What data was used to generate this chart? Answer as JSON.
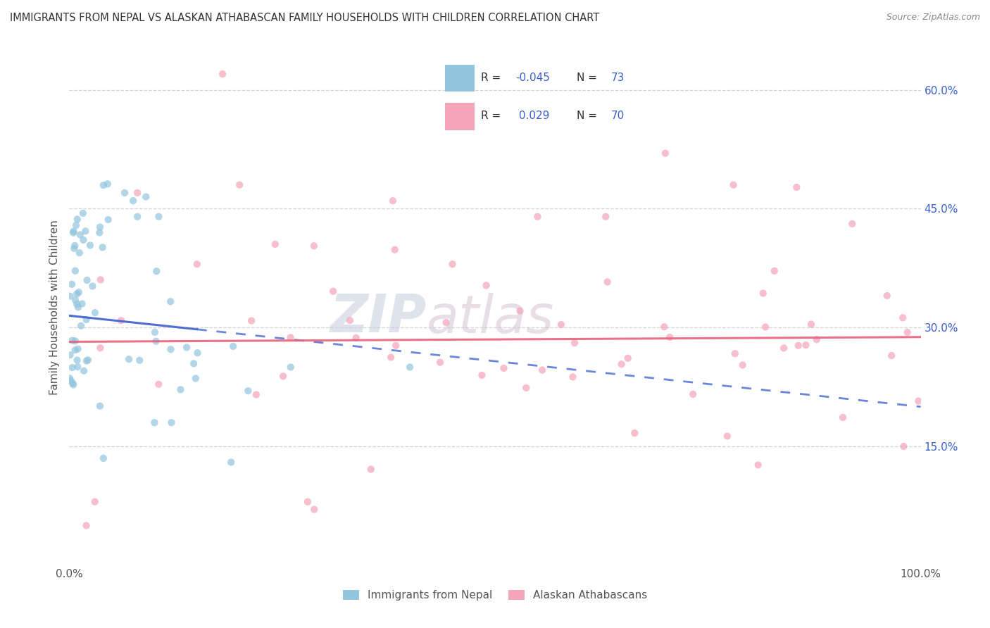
{
  "title": "IMMIGRANTS FROM NEPAL VS ALASKAN ATHABASCAN FAMILY HOUSEHOLDS WITH CHILDREN CORRELATION CHART",
  "source": "Source: ZipAtlas.com",
  "ylabel": "Family Households with Children",
  "ytick_vals": [
    15.0,
    30.0,
    45.0,
    60.0
  ],
  "watermark_part1": "ZIP",
  "watermark_part2": "atlas",
  "legend_blue_r": "-0.045",
  "legend_blue_n": "73",
  "legend_pink_r": "0.029",
  "legend_pink_n": "70",
  "blue_scatter_color": "#92C5DE",
  "pink_scatter_color": "#F4A5B8",
  "blue_line_color": "#3A5FCD",
  "pink_line_color": "#E8637A",
  "background_color": "#FFFFFF",
  "xmin": 0.0,
  "xmax": 100.0,
  "ymin": 0.0,
  "ymax": 65.0,
  "blue_line_x0": 0.0,
  "blue_line_y0": 31.5,
  "blue_line_x1": 100.0,
  "blue_line_y1": 20.0,
  "pink_line_x0": 0.0,
  "pink_line_y0": 28.2,
  "pink_line_x1": 100.0,
  "pink_line_y1": 28.8,
  "blue_solid_end": 15.0,
  "scatter_size": 55,
  "scatter_alpha": 0.7
}
